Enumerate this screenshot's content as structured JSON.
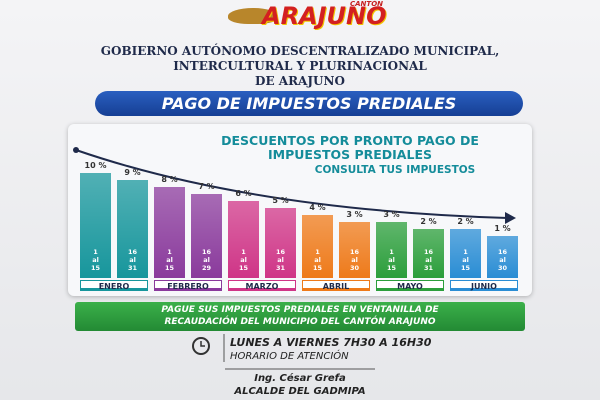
{
  "logo": {
    "small": "CANTÓN",
    "name": "ARAJUNO"
  },
  "header": {
    "lines": [
      "GOBIERNO AUTÓNOMO DESCENTRALIZADO MUNICIPAL,",
      "INTERCULTURAL Y PLURINACIONAL",
      "DE ARAJUNO"
    ]
  },
  "banner": "PAGO DE IMPUESTOS PREDIALES",
  "chart_data": {
    "type": "bar",
    "title": "DESCUENTOS POR PRONTO PAGO DE IMPUESTOS PREDIALES",
    "subtitle": "CONSULTA TUS IMPUESTOS",
    "categories": [
      "1 al 15",
      "16 al 31",
      "1 al 15",
      "16 al 29",
      "1 al 15",
      "16 al 31",
      "1 al 15",
      "16 al 30",
      "1 al 15",
      "16 al 31",
      "1 al 15",
      "16 al 30"
    ],
    "values": [
      10,
      9,
      8,
      7,
      6,
      5,
      4,
      3,
      3,
      2,
      2,
      1
    ],
    "value_labels": [
      "10 %",
      "9 %",
      "8 %",
      "7 %",
      "6 %",
      "5 %",
      "4 %",
      "3 %",
      "3 %",
      "2 %",
      "2 %",
      "1 %"
    ],
    "months": [
      "ENERO",
      "FEBRERO",
      "MARZO",
      "ABRIL",
      "MAYO",
      "JUNIO"
    ],
    "colors": [
      "#17969c",
      "#8a3a9c",
      "#cf3587",
      "#ee7a1a",
      "#2b9e3b",
      "#2a8dd4"
    ]
  },
  "notice": [
    "PAGUE SUS IMPUESTOS PREDIALES  EN VENTANILLA DE",
    "RECAUDACIÓN DEL MUNICIPIO DEL CANTÓN  ARAJUNO"
  ],
  "schedule": {
    "hours": "LUNES A VIERNES  7H30 A 16H30",
    "label": "HORARIO DE ATENCIÓN"
  },
  "signature": {
    "name": "Ing. César Grefa",
    "role": "ALCALDE DEL GADMIPA"
  }
}
